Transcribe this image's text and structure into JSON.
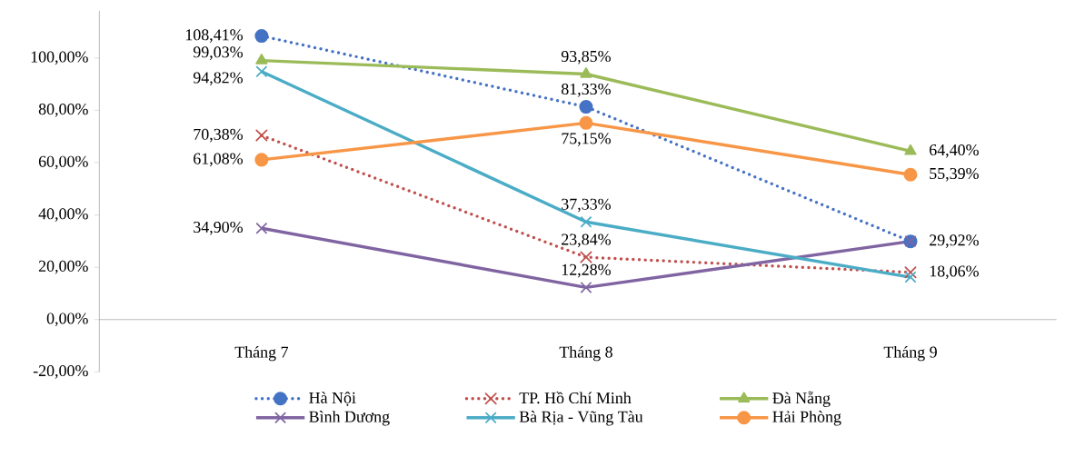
{
  "chart_data": {
    "type": "line",
    "categories": [
      "Tháng 7",
      "Tháng 8",
      "Tháng 9"
    ],
    "ylim": [
      -20,
      118
    ],
    "yticks": [
      {
        "value": -20,
        "label": "-20,00%"
      },
      {
        "value": 0,
        "label": "0,00%"
      },
      {
        "value": 20,
        "label": "20,00%"
      },
      {
        "value": 40,
        "label": "40,00%"
      },
      {
        "value": 60,
        "label": "60,00%"
      },
      {
        "value": 80,
        "label": "80,00%"
      },
      {
        "value": 100,
        "label": "100,00%"
      }
    ],
    "legend": "bottom",
    "grid": false,
    "series": [
      {
        "name": "Hà Nội",
        "color": "#4472c4",
        "marker": "circle",
        "line_style": "dotted",
        "values": [
          108.41,
          81.33,
          29.9
        ],
        "value_labels": [
          "108,41%",
          "81,33%",
          null
        ]
      },
      {
        "name": "TP. Hồ Chí Minh",
        "color": "#c0504d",
        "marker": "cross",
        "line_style": "dotted",
        "values": [
          70.38,
          23.84,
          18.06
        ],
        "value_labels": [
          "70,38%",
          "23,84%",
          "18,06%"
        ]
      },
      {
        "name": "Đà Nẵng",
        "color": "#9bbb59",
        "marker": "triangle",
        "line_style": "solid",
        "values": [
          99.03,
          93.85,
          64.4
        ],
        "value_labels": [
          "99,03%",
          "93,85%",
          "64,40%"
        ]
      },
      {
        "name": "Bình Dương",
        "color": "#8064a2",
        "marker": "cross",
        "line_style": "solid",
        "values": [
          34.9,
          12.28,
          29.92
        ],
        "value_labels": [
          "34,90%",
          "12,28%",
          "29,92%"
        ]
      },
      {
        "name": "Bà Rịa - Vũng Tàu",
        "color": "#4bacc6",
        "marker": "cross",
        "line_style": "solid",
        "values": [
          94.82,
          37.33,
          16.2
        ],
        "value_labels": [
          "94,82%",
          "37,33%",
          null
        ]
      },
      {
        "name": "Hải Phòng",
        "color": "#f79646",
        "marker": "circle",
        "line_style": "solid",
        "values": [
          61.08,
          75.15,
          55.39
        ],
        "value_labels": [
          "61,08%",
          "75,15%",
          "55,39%"
        ]
      }
    ]
  }
}
